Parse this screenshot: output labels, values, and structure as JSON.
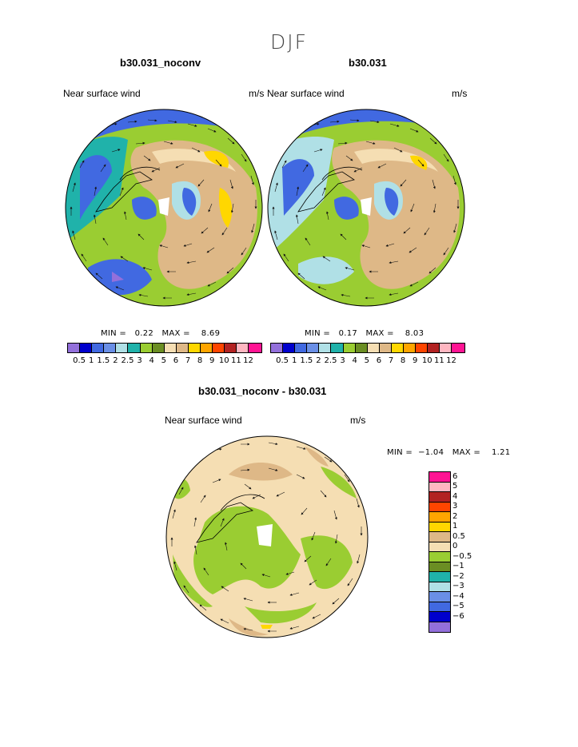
{
  "page_title": "DJF",
  "panels": [
    {
      "case_title": "b30.031_noconv",
      "variable": "Near surface wind",
      "units": "m/s",
      "min_label": "MIN =",
      "min_value": "0.22",
      "max_label": "MAX =",
      "max_value": "8.69"
    },
    {
      "case_title": "b30.031",
      "variable": "Near surface wind",
      "units": "m/s",
      "min_label": "MIN =",
      "min_value": "0.17",
      "max_label": "MAX =",
      "max_value": "8.03"
    },
    {
      "case_title": "b30.031_noconv - b30.031",
      "variable": "Near surface wind",
      "units": "m/s",
      "min_label": "MIN =",
      "min_value": "−1.04",
      "max_label": "MAX =",
      "max_value": "1.21"
    }
  ],
  "abs_colorbar": {
    "colors": [
      "#9370db",
      "#0000cd",
      "#4169e1",
      "#6a8fe6",
      "#b0e0e6",
      "#20b2aa",
      "#9acd32",
      "#6b8e23",
      "#f5deb3",
      "#deb887",
      "#ffd700",
      "#ffa500",
      "#ff4500",
      "#b22222",
      "#ffb6c1",
      "#ff1493"
    ],
    "labels": [
      "0.5",
      "1",
      "1.5",
      "2",
      "2.5",
      "3",
      "4",
      "5",
      "6",
      "7",
      "8",
      "9",
      "10",
      "11",
      "12"
    ]
  },
  "diff_colorbar": {
    "colors": [
      "#ff1493",
      "#ffb6c1",
      "#b22222",
      "#ff4500",
      "#ffa500",
      "#ffd700",
      "#deb887",
      "#f5deb3",
      "#9acd32",
      "#6b8e23",
      "#20b2aa",
      "#b0e0e6",
      "#6a8fe6",
      "#4169e1",
      "#0000cd",
      "#9370db"
    ],
    "labels": [
      "6",
      "5",
      "4",
      "3",
      "2",
      "1",
      "0.5",
      "0",
      "−0.5",
      "−1",
      "−2",
      "−3",
      "−4",
      "−5",
      "−6"
    ]
  },
  "map_colors": {
    "ocean_low": "#4169e1",
    "ocean_mid": "#b0e0e6",
    "ring_green": "#9acd32",
    "ring_teal": "#20b2aa",
    "deep_blue": "#0000cd",
    "land_tan": "#deb887",
    "land_light": "#f5deb3",
    "high_yellow": "#ffd700",
    "diff_bg": "#f5deb3",
    "diff_green": "#9acd32"
  }
}
